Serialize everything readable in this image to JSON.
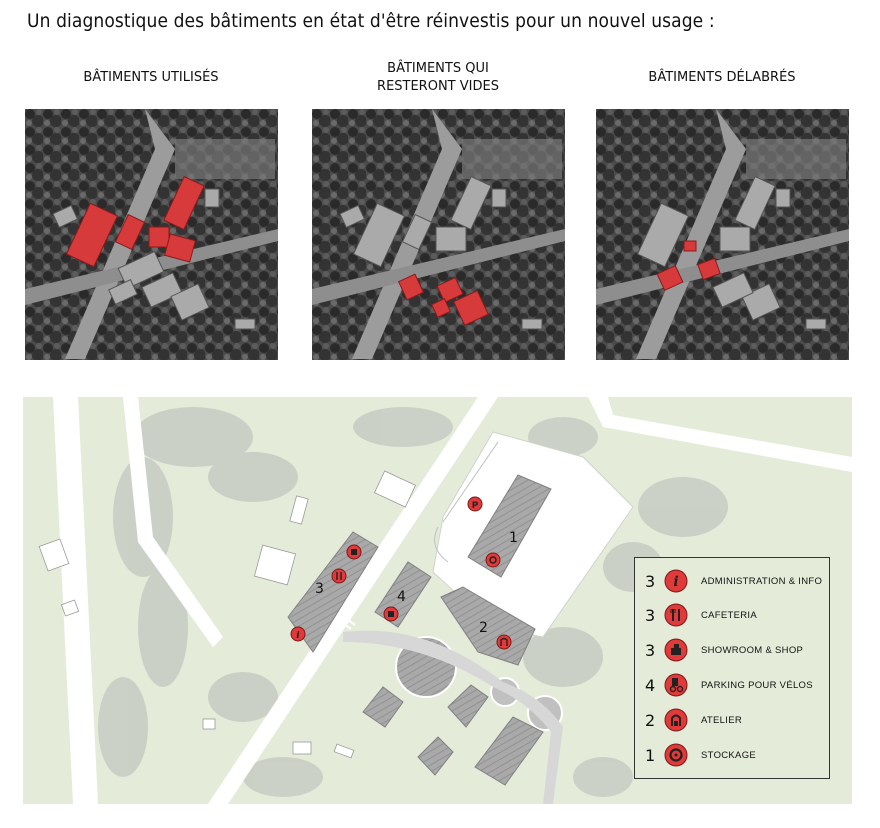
{
  "title": "Un diagnostique des bâtiments en état d'être réinvestis pour un nouvel usage :",
  "panels": [
    {
      "title_line1": "BÂTIMENTS UTILISÉS",
      "title_line2": ""
    },
    {
      "title_line1": "BÂTIMENTS QUI",
      "title_line2": "RESTERONT VIDES"
    },
    {
      "title_line1": "BÂTIMENTS DÉLABRÉS",
      "title_line2": ""
    }
  ],
  "map": {
    "building_numbers": [
      "1",
      "2",
      "3",
      "4"
    ]
  },
  "legend": {
    "items": [
      {
        "count": "3",
        "icon": "info-icon",
        "label": "ADMINISTRATION & INFO"
      },
      {
        "count": "3",
        "icon": "cutlery-icon",
        "label": "CAFETERIA"
      },
      {
        "count": "3",
        "icon": "shop-icon",
        "label": "SHOWROOM & SHOP"
      },
      {
        "count": "4",
        "icon": "bike-parking-icon",
        "label": "PARKING POUR VÉLOS"
      },
      {
        "count": "2",
        "icon": "workshop-icon",
        "label": "ATELIER"
      },
      {
        "count": "1",
        "icon": "storage-icon",
        "label": "STOCKAGE"
      }
    ]
  },
  "colors": {
    "accent_red": "#e03a3a",
    "map_green": "#e4ecd9",
    "road_white": "#ffffff"
  }
}
